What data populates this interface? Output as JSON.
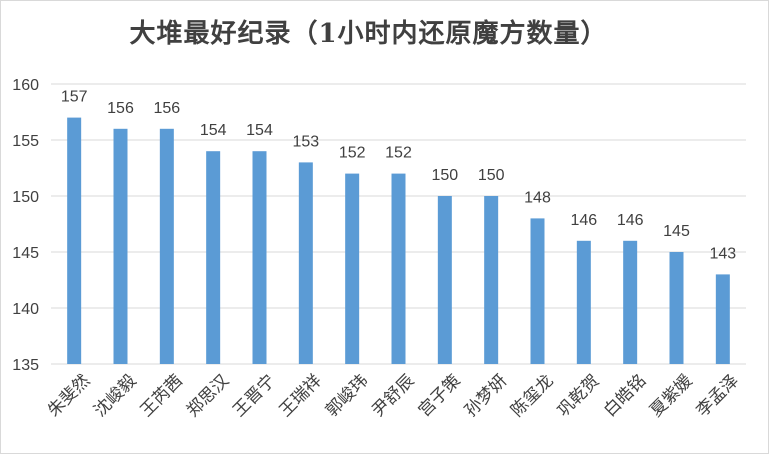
{
  "chart_data": {
    "type": "bar",
    "title": "大堆最好纪录（1小时内还原魔方数量）",
    "categories": [
      "朱斐然",
      "沈峻毅",
      "王芮茜",
      "郑思汉",
      "王晋宁",
      "王瑞祥",
      "郭峻玮",
      "尹舒辰",
      "宫子策",
      "孙梦妍",
      "陈玺龙",
      "巩乾贺",
      "白皓铭",
      "夏紫媛",
      "李孟泽"
    ],
    "values": [
      157,
      156,
      156,
      154,
      154,
      153,
      152,
      152,
      150,
      150,
      148,
      146,
      146,
      145,
      143
    ],
    "ylim": [
      135,
      160
    ],
    "yticks": [
      135,
      140,
      145,
      150,
      155,
      160
    ],
    "grid": true,
    "legend": "none",
    "xlabel": "",
    "ylabel": "",
    "bar_color": "#5b9bd5",
    "grid_color": "#d9d9d9",
    "text_color": "#404040"
  }
}
